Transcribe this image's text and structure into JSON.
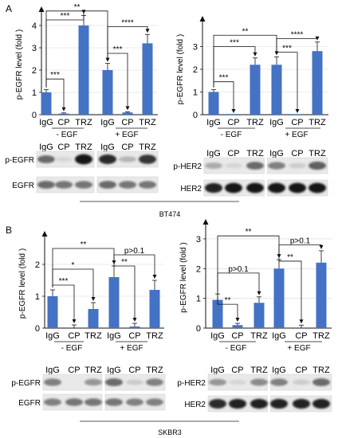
{
  "panels": [
    {
      "letter": "A",
      "cell_line": "BT474"
    },
    {
      "letter": "B",
      "cell_line": "SKBR3"
    }
  ],
  "chart_data": [
    {
      "type": "bar",
      "panel": "A",
      "ylabel": "p-EGFR level (fold )",
      "categories": [
        "IgG",
        "CP",
        "TRZ",
        "IgG",
        "CP",
        "TRZ"
      ],
      "groups": [
        "- EGF",
        "+ EGF"
      ],
      "values": [
        1.0,
        0.05,
        4.0,
        2.0,
        0.1,
        3.2
      ],
      "errors": [
        0.12,
        0.03,
        0.45,
        0.3,
        0.03,
        0.4
      ],
      "ylim": [
        0,
        4.5
      ],
      "yticks": [
        0,
        1,
        2,
        3,
        4
      ],
      "color": "#4472c4",
      "significance": [
        {
          "a": 0,
          "b": 1,
          "label": "***",
          "level": 1.6
        },
        {
          "a": 0,
          "b": 2,
          "label": "***",
          "level": 4.25
        },
        {
          "a": 0,
          "b": 3,
          "label": "**",
          "level": 4.65
        },
        {
          "a": 3,
          "b": 4,
          "label": "***",
          "level": 2.75
        },
        {
          "a": 3,
          "b": 5,
          "label": "****",
          "level": 3.95
        }
      ]
    },
    {
      "type": "bar",
      "panel": "A",
      "ylabel": "p-EGFR level (fold )",
      "categories": [
        "IgG",
        "CP",
        "TRZ",
        "IgG",
        "CP",
        "TRZ"
      ],
      "groups": [
        "- EGF",
        "+ EGF"
      ],
      "values": [
        1.0,
        0.0,
        2.2,
        2.2,
        0.0,
        2.8
      ],
      "errors": [
        0.1,
        0.0,
        0.3,
        0.35,
        0.0,
        0.4
      ],
      "ylim": [
        0,
        4
      ],
      "yticks": [
        0,
        1,
        2,
        3
      ],
      "color": "#4472c4",
      "significance": [
        {
          "a": 0,
          "b": 1,
          "label": "***",
          "level": 1.45
        },
        {
          "a": 0,
          "b": 2,
          "label": "***",
          "level": 3.0
        },
        {
          "a": 0,
          "b": 3,
          "label": "**",
          "level": 3.5
        },
        {
          "a": 3,
          "b": 4,
          "label": "***",
          "level": 2.75
        },
        {
          "a": 3,
          "b": 5,
          "label": "****",
          "level": 3.35
        }
      ]
    },
    {
      "type": "bar",
      "panel": "B",
      "ylabel": "p-EGFR level (fold )",
      "categories": [
        "IgG",
        "CP",
        "TRZ",
        "IgG",
        "CP",
        "TRZ"
      ],
      "groups": [
        "- EGF",
        "+ EGF"
      ],
      "values": [
        1.0,
        0.0,
        0.6,
        1.6,
        0.05,
        1.2
      ],
      "errors": [
        0.2,
        0.1,
        0.2,
        0.35,
        0.1,
        0.3
      ],
      "ylim": [
        0,
        2.8
      ],
      "yticks": [
        0,
        1,
        2
      ],
      "color": "#4472c4",
      "significance": [
        {
          "a": 0,
          "b": 1,
          "label": "***",
          "level": 1.35
        },
        {
          "a": 0,
          "b": 2,
          "label": "*",
          "level": 1.85
        },
        {
          "a": 0,
          "b": 3,
          "label": "**",
          "level": 2.5
        },
        {
          "a": 3,
          "b": 4,
          "label": "**",
          "level": 1.95
        },
        {
          "a": 3,
          "b": 5,
          "label": "p>0.1",
          "level": 2.3
        }
      ]
    },
    {
      "type": "bar",
      "panel": "B",
      "ylabel": "p-EGFR level (fold )",
      "categories": [
        "IgG",
        "CP",
        "TRZ",
        "IgG",
        "CP",
        "TRZ"
      ],
      "groups": [
        "- EGF",
        "+ EGF"
      ],
      "values": [
        0.95,
        0.1,
        0.85,
        2.0,
        0.0,
        2.2
      ],
      "errors": [
        0.2,
        0.06,
        0.2,
        0.3,
        0.1,
        0.4
      ],
      "ylim": [
        0,
        3.4
      ],
      "yticks": [
        0,
        1,
        2,
        3
      ],
      "color": "#4472c4",
      "significance": [
        {
          "a": 0,
          "b": 1,
          "label": "**",
          "level": 0.8
        },
        {
          "a": 0,
          "b": 2,
          "label": "p>0.1",
          "level": 1.85
        },
        {
          "a": 0,
          "b": 3,
          "label": "**",
          "level": 3.1
        },
        {
          "a": 3,
          "b": 4,
          "label": "**",
          "level": 2.25
        },
        {
          "a": 3,
          "b": 5,
          "label": "p>0.1",
          "level": 2.8
        }
      ]
    }
  ],
  "blots": [
    {
      "lane_labels": [
        "IgG",
        "CP",
        "TRZ",
        "IgG",
        "CP",
        "TRZ"
      ],
      "rows": [
        {
          "label": "p-EGFR",
          "intensity": [
            0.55,
            0.05,
            0.95,
            0.85,
            0.2,
            0.8
          ]
        },
        {
          "label": "EGFR",
          "intensity": [
            0.55,
            0.5,
            0.5,
            0.55,
            0.5,
            0.5
          ]
        }
      ]
    },
    {
      "lane_labels": [
        "IgG",
        "CP",
        "TRZ",
        "IgG",
        "CP",
        "TRZ"
      ],
      "rows": [
        {
          "label": "p-HER2",
          "intensity": [
            0.25,
            0.05,
            0.55,
            0.45,
            0.1,
            0.6
          ]
        },
        {
          "label": "HER2",
          "intensity": [
            0.9,
            0.95,
            0.95,
            0.95,
            0.95,
            0.95
          ]
        }
      ]
    },
    {
      "lane_labels": [
        "IgG",
        "CP",
        "TRZ",
        "IgG",
        "CP",
        "TRZ"
      ],
      "rows": [
        {
          "label": "p-EGFR",
          "intensity": [
            0.45,
            0.0,
            0.35,
            0.55,
            0.1,
            0.45
          ]
        },
        {
          "label": "EGFR",
          "intensity": [
            0.45,
            0.5,
            0.5,
            0.5,
            0.45,
            0.45
          ]
        }
      ]
    },
    {
      "lane_labels": [
        "IgG",
        "CP",
        "TRZ",
        "IgG",
        "CP",
        "TRZ"
      ],
      "rows": [
        {
          "label": "p-HER2",
          "intensity": [
            0.35,
            0.05,
            0.4,
            0.45,
            0.1,
            0.55
          ]
        },
        {
          "label": "HER2",
          "intensity": [
            0.85,
            0.9,
            0.9,
            0.9,
            0.9,
            0.9
          ]
        }
      ]
    }
  ]
}
